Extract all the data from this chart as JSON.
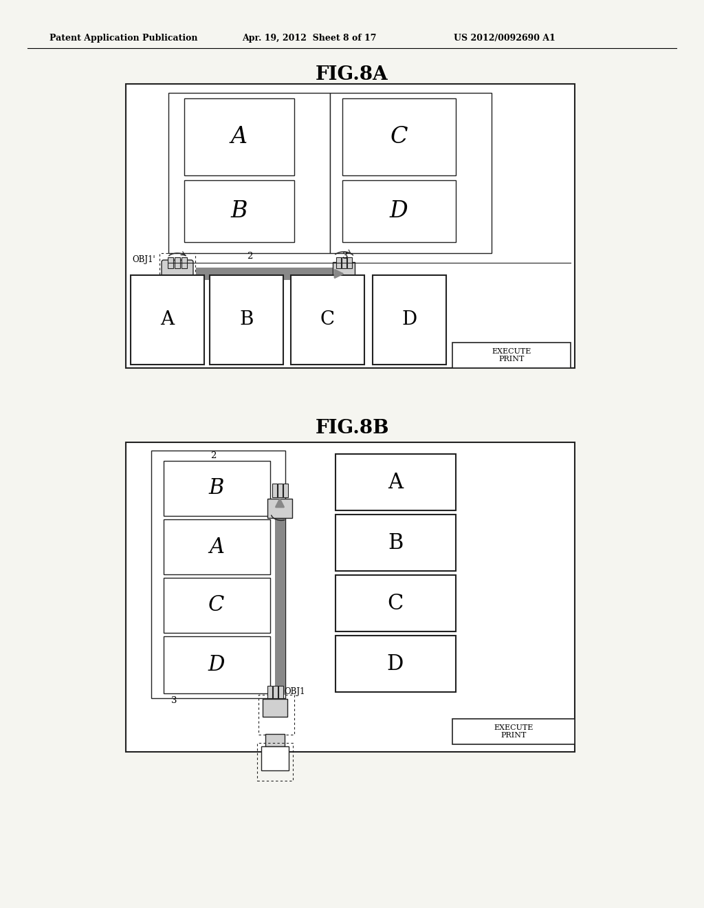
{
  "background_color": "#f5f5f0",
  "header_left": "Patent Application Publication",
  "header_mid": "Apr. 19, 2012  Sheet 8 of 17",
  "header_right": "US 2012/0092690 A1",
  "fig8a_title": "FIG.8A",
  "fig8b_title": "FIG.8B",
  "execute_print": "EXECUTE\nPRINT",
  "obj1_prime": "OBJ1'",
  "obj1": "OBJ1",
  "label_2": "2",
  "label_3": "3",
  "pages_8a_preview_left": [
    "A",
    "B"
  ],
  "pages_8a_preview_right": [
    "C",
    "D"
  ],
  "pages_8a_strip": [
    "A",
    "B",
    "C",
    "D"
  ],
  "pages_8b_left": [
    "B",
    "A",
    "C",
    "D"
  ],
  "pages_8b_right": [
    "A",
    "B",
    "C",
    "D"
  ],
  "arrow_shade": "#888888",
  "hand_fill": "#d0d0d0",
  "hand_edge": "#333333",
  "border_color": "#222222"
}
